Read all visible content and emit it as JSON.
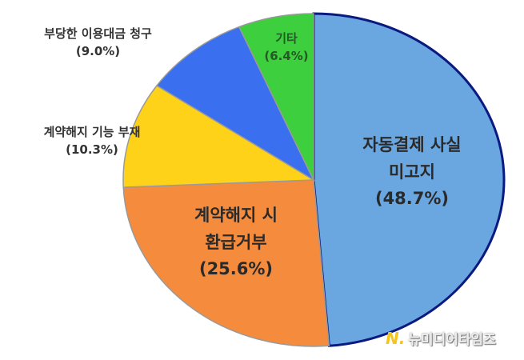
{
  "chart_data": {
    "type": "pie",
    "slices": [
      {
        "label": "자동결제 사실 미고지",
        "value": 48.7,
        "display": "(48.7%)",
        "color": "#6aa6e0"
      },
      {
        "label": "계약해지 시 환급거부",
        "value": 25.6,
        "display": "(25.6%)",
        "color": "#f58b3c"
      },
      {
        "label": "계약해지 기능 부재",
        "value": 10.3,
        "display": "(10.3%)",
        "color": "#ffd21a"
      },
      {
        "label": "부당한 이용대금 청구",
        "value": 9.0,
        "display": "(9.0%)",
        "color": "#3a6ff0"
      },
      {
        "label": "기타",
        "value": 6.4,
        "display": "(6.4%)",
        "color": "#3ecf3e"
      }
    ],
    "start": "top",
    "direction": "clockwise"
  },
  "labels": {
    "l0a": "자동결제 사실",
    "l0b": "미고지",
    "l1a": "계약해지 시",
    "l1b": "환급거부"
  },
  "watermark": "뉴미디어타임즈"
}
